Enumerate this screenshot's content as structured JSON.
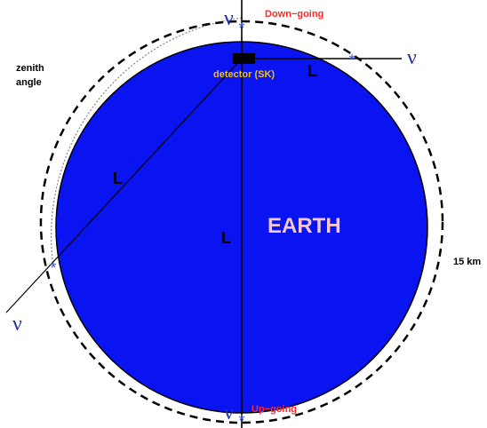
{
  "labels": {
    "zenith_line1": "zenith",
    "zenith_line2": "angle",
    "down_going": "Down−going",
    "up_going": "Up−going",
    "detector": "detector (SK)",
    "earth": "EARTH",
    "distance": "15 km",
    "path_length": "L",
    "neutrino": "ν"
  },
  "colors": {
    "earth": "#0a14f0",
    "down_going": "#ff2a2a",
    "up_going": "#ff2a2a",
    "detector_label": "#f5c400",
    "earth_label": "#f4c8c8",
    "neutrino": "#2233aa",
    "crossing_marker": "#3355ff"
  },
  "icons": {
    "crossing_marker": "asterisk",
    "detector": "detector-box"
  }
}
